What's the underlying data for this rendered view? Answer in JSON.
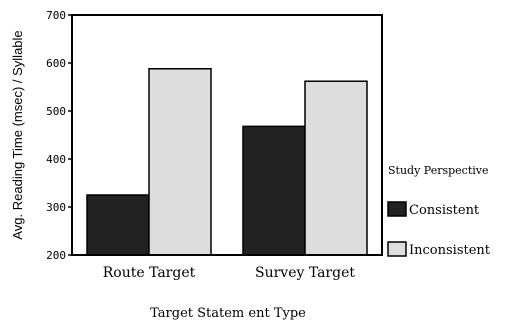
{
  "chart_data": {
    "type": "bar",
    "categories": [
      "Route Target",
      "Survey Target"
    ],
    "series": [
      {
        "name": "Consistent",
        "values": [
          325,
          468
        ],
        "color": "#222222"
      },
      {
        "name": "Inconsistent",
        "values": [
          588,
          562
        ],
        "color": "#dddddd"
      }
    ],
    "xlabel": "Target Statem ent Type",
    "ylabel": "Avg. Reading Time (msec) / Syllable",
    "ylim": [
      200,
      700
    ],
    "yticks": [
      {
        "value": 200,
        "label": "200"
      },
      {
        "value": 300,
        "label": "300"
      },
      {
        "value": 400,
        "label": "400"
      },
      {
        "value": 500,
        "label": "500"
      },
      {
        "value": 600,
        "label": "600"
      },
      {
        "value": 700,
        "label": "700"
      }
    ],
    "legend": {
      "title": "Study Perspective",
      "placement": "right"
    },
    "grid": false
  }
}
